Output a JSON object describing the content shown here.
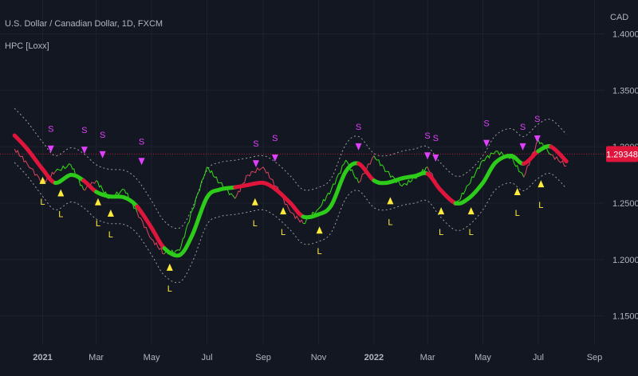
{
  "header": {
    "symbol_label": "U.S. Dollar / Canadian Dollar, 1D, FXCM",
    "indicator_label": "HPC [Loxx]",
    "currency": "CAD"
  },
  "colors": {
    "background": "#131722",
    "grid": "#1e222d",
    "axis_text": "#b2b5be",
    "bull": "#2ecc1a",
    "bear": "#e0153c",
    "price_bull": "#39ff14",
    "price_bear": "#ff4d6a",
    "band": "#c8c8c8",
    "sell_marker": "#e040fb",
    "buy_marker": "#ffeb3b",
    "last_price_badge": "#e0153c"
  },
  "chart_data": {
    "type": "line",
    "title": "U.S. Dollar / Canadian Dollar, 1D, FXCM",
    "indicator": "HPC [Loxx]",
    "ylim": [
      1.125,
      1.43
    ],
    "y_ticks": [
      "1.15000",
      "1.20000",
      "1.25000",
      "1.30000",
      "1.35000",
      "1.40000"
    ],
    "x_ticks": [
      "2021",
      "Mar",
      "May",
      "Jul",
      "Sep",
      "Nov",
      "2022",
      "Mar",
      "May",
      "Jul",
      "Sep"
    ],
    "x_tick_bold": [
      "2021",
      "2022"
    ],
    "last_price": "1.29348",
    "series": [
      {
        "name": "HPC",
        "x": [
          "2020-12-01",
          "2020-12-15",
          "2021-01-01",
          "2021-01-15",
          "2021-02-01",
          "2021-02-15",
          "2021-03-01",
          "2021-03-15",
          "2021-04-01",
          "2021-04-15",
          "2021-05-01",
          "2021-05-15",
          "2021-06-01",
          "2021-06-15",
          "2021-07-01",
          "2021-07-15",
          "2021-08-01",
          "2021-08-15",
          "2021-09-01",
          "2021-09-15",
          "2021-10-01",
          "2021-10-15",
          "2021-11-01",
          "2021-11-15",
          "2021-12-01",
          "2021-12-15",
          "2022-01-01",
          "2022-01-15",
          "2022-02-01",
          "2022-02-15",
          "2022-03-01",
          "2022-03-15",
          "2022-04-01",
          "2022-04-15",
          "2022-05-01",
          "2022-05-15",
          "2022-06-01",
          "2022-06-15",
          "2022-07-01",
          "2022-07-15",
          "2022-08-01"
        ],
        "y": [
          1.31,
          1.298,
          1.28,
          1.268,
          1.275,
          1.27,
          1.26,
          1.256,
          1.255,
          1.247,
          1.228,
          1.21,
          1.204,
          1.222,
          1.255,
          1.262,
          1.264,
          1.266,
          1.268,
          1.262,
          1.25,
          1.238,
          1.24,
          1.248,
          1.278,
          1.285,
          1.27,
          1.268,
          1.272,
          1.274,
          1.276,
          1.262,
          1.25,
          1.254,
          1.268,
          1.286,
          1.292,
          1.285,
          1.296,
          1.3,
          1.287
        ],
        "trend": [
          "bear",
          "bear",
          "bear",
          "bull",
          "bull",
          "bear",
          "bull",
          "bull",
          "bull",
          "bear",
          "bear",
          "bull",
          "bull",
          "bull",
          "bull",
          "bull",
          "bear",
          "bear",
          "bear",
          "bear",
          "bear",
          "bull",
          "bull",
          "bull",
          "bull",
          "bear",
          "bull",
          "bull",
          "bull",
          "bull",
          "bear",
          "bear",
          "bull",
          "bull",
          "bull",
          "bull",
          "bull",
          "bear",
          "bull",
          "bear",
          "bear"
        ]
      },
      {
        "name": "Price",
        "x": [
          "2020-12-01",
          "2020-12-15",
          "2021-01-01",
          "2021-01-15",
          "2021-02-01",
          "2021-02-15",
          "2021-03-01",
          "2021-03-15",
          "2021-04-01",
          "2021-04-15",
          "2021-05-01",
          "2021-05-15",
          "2021-06-01",
          "2021-06-15",
          "2021-07-01",
          "2021-07-15",
          "2021-08-01",
          "2021-08-15",
          "2021-09-01",
          "2021-09-15",
          "2021-10-01",
          "2021-10-15",
          "2021-11-01",
          "2021-11-15",
          "2021-12-01",
          "2021-12-15",
          "2022-01-01",
          "2022-01-15",
          "2022-02-01",
          "2022-02-15",
          "2022-03-01",
          "2022-03-15",
          "2022-04-01",
          "2022-04-15",
          "2022-05-01",
          "2022-05-15",
          "2022-06-01",
          "2022-06-15",
          "2022-07-01",
          "2022-07-15",
          "2022-08-01"
        ],
        "y": [
          1.298,
          1.285,
          1.268,
          1.278,
          1.284,
          1.262,
          1.27,
          1.254,
          1.262,
          1.242,
          1.218,
          1.205,
          1.208,
          1.244,
          1.282,
          1.268,
          1.254,
          1.275,
          1.282,
          1.265,
          1.242,
          1.232,
          1.245,
          1.262,
          1.288,
          1.268,
          1.292,
          1.278,
          1.265,
          1.272,
          1.282,
          1.262,
          1.248,
          1.266,
          1.288,
          1.296,
          1.29,
          1.273,
          1.306,
          1.293,
          1.283
        ]
      },
      {
        "name": "Upper band",
        "x": [
          "2020-12-01",
          "2020-12-15",
          "2021-01-01",
          "2021-01-15",
          "2021-02-01",
          "2021-02-15",
          "2021-03-01",
          "2021-03-15",
          "2021-04-01",
          "2021-04-15",
          "2021-05-01",
          "2021-05-15",
          "2021-06-01",
          "2021-06-15",
          "2021-07-01",
          "2021-07-15",
          "2021-08-01",
          "2021-08-15",
          "2021-09-01",
          "2021-09-15",
          "2021-10-01",
          "2021-10-15",
          "2021-11-01",
          "2021-11-15",
          "2021-12-01",
          "2021-12-15",
          "2022-01-01",
          "2022-01-15",
          "2022-02-01",
          "2022-02-15",
          "2022-03-01",
          "2022-03-15",
          "2022-04-01",
          "2022-04-15",
          "2022-05-01",
          "2022-05-15",
          "2022-06-01",
          "2022-06-15",
          "2022-07-01",
          "2022-07-15",
          "2022-08-01"
        ],
        "y": [
          1.334,
          1.322,
          1.304,
          1.292,
          1.299,
          1.294,
          1.284,
          1.28,
          1.279,
          1.271,
          1.252,
          1.234,
          1.228,
          1.246,
          1.279,
          1.286,
          1.288,
          1.29,
          1.292,
          1.286,
          1.274,
          1.262,
          1.264,
          1.272,
          1.302,
          1.309,
          1.294,
          1.292,
          1.296,
          1.298,
          1.3,
          1.286,
          1.274,
          1.278,
          1.292,
          1.31,
          1.316,
          1.309,
          1.32,
          1.324,
          1.311
        ]
      },
      {
        "name": "Lower band",
        "x": [
          "2020-12-01",
          "2020-12-15",
          "2021-01-01",
          "2021-01-15",
          "2021-02-01",
          "2021-02-15",
          "2021-03-01",
          "2021-03-15",
          "2021-04-01",
          "2021-04-15",
          "2021-05-01",
          "2021-05-15",
          "2021-06-01",
          "2021-06-15",
          "2021-07-01",
          "2021-07-15",
          "2021-08-01",
          "2021-08-15",
          "2021-09-01",
          "2021-09-15",
          "2021-10-01",
          "2021-10-15",
          "2021-11-01",
          "2021-11-15",
          "2021-12-01",
          "2021-12-15",
          "2022-01-01",
          "2022-01-15",
          "2022-02-01",
          "2022-02-15",
          "2022-03-01",
          "2022-03-15",
          "2022-04-01",
          "2022-04-15",
          "2022-05-01",
          "2022-05-15",
          "2022-06-01",
          "2022-06-15",
          "2022-07-01",
          "2022-07-15",
          "2022-08-01"
        ],
        "y": [
          1.286,
          1.274,
          1.256,
          1.244,
          1.251,
          1.246,
          1.236,
          1.232,
          1.231,
          1.223,
          1.204,
          1.186,
          1.18,
          1.198,
          1.231,
          1.238,
          1.24,
          1.242,
          1.244,
          1.238,
          1.226,
          1.214,
          1.216,
          1.224,
          1.254,
          1.261,
          1.246,
          1.244,
          1.248,
          1.25,
          1.252,
          1.238,
          1.226,
          1.23,
          1.244,
          1.262,
          1.268,
          1.261,
          1.272,
          1.276,
          1.263
        ]
      }
    ],
    "signals": [
      {
        "type": "sell",
        "label": "S",
        "x": "2021-01-10",
        "y": 1.301
      },
      {
        "type": "sell",
        "label": "S",
        "x": "2021-02-16",
        "y": 1.3
      },
      {
        "type": "sell",
        "label": "S",
        "x": "2021-03-08",
        "y": 1.296
      },
      {
        "type": "sell",
        "label": "S",
        "x": "2021-04-20",
        "y": 1.29
      },
      {
        "type": "sell",
        "label": "S",
        "x": "2021-08-24",
        "y": 1.288
      },
      {
        "type": "sell",
        "label": "S",
        "x": "2021-09-14",
        "y": 1.293
      },
      {
        "type": "sell",
        "label": "S",
        "x": "2021-12-15",
        "y": 1.303
      },
      {
        "type": "sell",
        "label": "S",
        "x": "2022-03-01",
        "y": 1.295
      },
      {
        "type": "sell",
        "label": "S",
        "x": "2022-03-10",
        "y": 1.293
      },
      {
        "type": "sell",
        "label": "S",
        "x": "2022-05-05",
        "y": 1.306
      },
      {
        "type": "sell",
        "label": "S",
        "x": "2022-06-14",
        "y": 1.303
      },
      {
        "type": "sell",
        "label": "S",
        "x": "2022-06-30",
        "y": 1.31
      },
      {
        "type": "buy",
        "label": "L",
        "x": "2021-01-01",
        "y": 1.267
      },
      {
        "type": "buy",
        "label": "L",
        "x": "2021-01-21",
        "y": 1.256
      },
      {
        "type": "buy",
        "label": "L",
        "x": "2021-03-03",
        "y": 1.248
      },
      {
        "type": "buy",
        "label": "L",
        "x": "2021-03-17",
        "y": 1.238
      },
      {
        "type": "buy",
        "label": "L",
        "x": "2021-05-21",
        "y": 1.19
      },
      {
        "type": "buy",
        "label": "L",
        "x": "2021-08-23",
        "y": 1.248
      },
      {
        "type": "buy",
        "label": "L",
        "x": "2021-09-23",
        "y": 1.24
      },
      {
        "type": "buy",
        "label": "L",
        "x": "2021-11-02",
        "y": 1.223
      },
      {
        "type": "buy",
        "label": "L",
        "x": "2022-01-19",
        "y": 1.249
      },
      {
        "type": "buy",
        "label": "L",
        "x": "2022-03-16",
        "y": 1.24
      },
      {
        "type": "buy",
        "label": "L",
        "x": "2022-04-18",
        "y": 1.24
      },
      {
        "type": "buy",
        "label": "L",
        "x": "2022-06-08",
        "y": 1.257
      },
      {
        "type": "buy",
        "label": "L",
        "x": "2022-07-04",
        "y": 1.264
      }
    ]
  }
}
